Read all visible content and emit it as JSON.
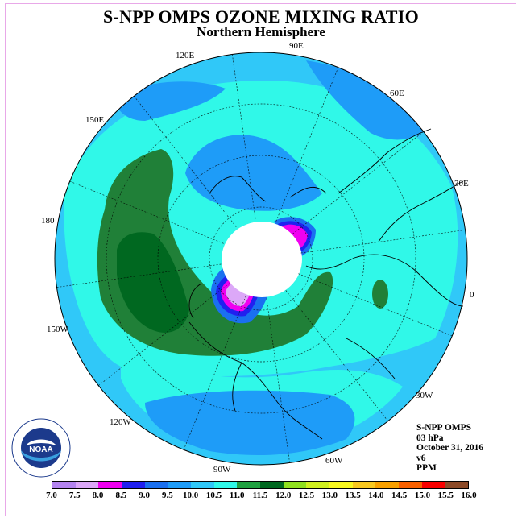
{
  "title": "S-NPP OMPS OZONE MIXING RATIO",
  "subtitle": "Northern Hemisphere",
  "longitude_labels": {
    "lon_90e": "90E",
    "lon_120e": "120E",
    "lon_60e": "60E",
    "lon_150e": "150E",
    "lon_30e": "30E",
    "lon_180": "180",
    "lon_0": "0",
    "lon_150w": "150W",
    "lon_30w": "30W",
    "lon_120w": "120W",
    "lon_60w": "60W",
    "lon_90w": "90W"
  },
  "info": {
    "line1": "S-NPP OMPS",
    "line2": "03 hPa",
    "line3": "October 31, 2016",
    "line4": "v6",
    "line5": "PPM"
  },
  "logo_text": "NOAA",
  "colorbar": {
    "labels": [
      "7.0",
      "7.5",
      "8.0",
      "8.5",
      "9.0",
      "9.5",
      "10.0",
      "10.5",
      "11.0",
      "11.5",
      "12.0",
      "12.5",
      "13.0",
      "13.5",
      "14.0",
      "14.5",
      "15.0",
      "15.5",
      "16.0"
    ],
    "colors": [
      "#b484f0",
      "#dca8f8",
      "#f000f0",
      "#2020f0",
      "#1a70f0",
      "#1e9cf8",
      "#30c8f8",
      "#30f8e8",
      "#20a040",
      "#006820",
      "#90e020",
      "#d0f020",
      "#f8f820",
      "#f8c820",
      "#f8a000",
      "#f86000",
      "#f80000",
      "#8c4a28"
    ]
  },
  "map": {
    "ocean_background": "#30c8f8",
    "high_ozone_color": "#208038",
    "peak_color": "#006820",
    "low_band_color": "#1e9cf8",
    "teal_color": "#30f8e8",
    "magenta_color": "#f000f0",
    "blue_ring_color": "#2020f0",
    "polar_night_color": "#ffffff"
  }
}
